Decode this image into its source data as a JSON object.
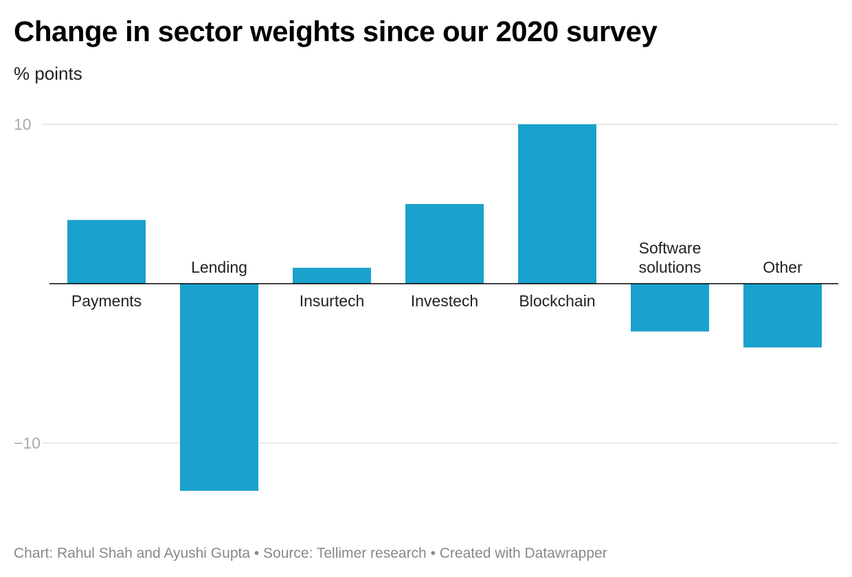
{
  "title": "Change in sector weights since our 2020 survey",
  "subtitle": "% points",
  "footer": "Chart: Rahul Shah and Ayushi Gupta • Source: Tellimer research • Created with Datawrapper",
  "colors": {
    "bar": "#1aa1cd",
    "grid": "#e0e0e0",
    "zero": "#000000"
  },
  "chart_data": {
    "type": "bar",
    "title": "Change in sector weights since our 2020 survey",
    "ylabel": "% points",
    "xlabel": "",
    "ylim": [
      -14,
      10
    ],
    "yticks": [
      {
        "value": 10,
        "label": "10"
      },
      {
        "value": -10,
        "label": "−10"
      }
    ],
    "categories": [
      "Payments",
      "Lending",
      "Insurtech",
      "Investech",
      "Blockchain",
      "Software solutions",
      "Other"
    ],
    "label_lines": [
      [
        "Payments"
      ],
      [
        "Lending"
      ],
      [
        "Insurtech"
      ],
      [
        "Investech"
      ],
      [
        "Blockchain"
      ],
      [
        "Software",
        "solutions"
      ],
      [
        "Other"
      ]
    ],
    "values": [
      4,
      -13,
      1,
      5,
      10,
      -3,
      -4
    ]
  }
}
